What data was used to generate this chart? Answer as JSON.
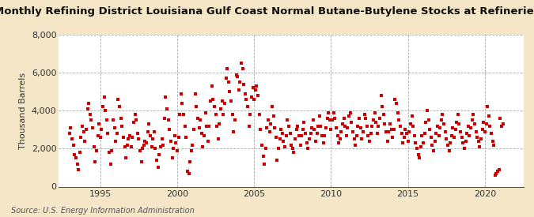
{
  "title": "Monthly Refining District Louisiana Gulf Coast Normal Butane-Butylene Stocks at Refineries",
  "ylabel": "Thousand Barrels",
  "source": "Source: U.S. Energy Information Administration",
  "figure_bg": "#f5e6c8",
  "plot_bg": "#ffffff",
  "dot_color": "#cc0000",
  "ylim": [
    0,
    8000
  ],
  "yticks": [
    0,
    2000,
    4000,
    6000,
    8000
  ],
  "xlim_start": 1992.3,
  "xlim_end": 2022.5,
  "xticks": [
    1995,
    2000,
    2005,
    2010,
    2015,
    2020
  ],
  "grid_color": "#aaaaaa",
  "grid_linestyle": "--",
  "title_fontsize": 9.5,
  "tick_fontsize": 8,
  "ylabel_fontsize": 8,
  "source_fontsize": 7,
  "data": [
    [
      1993.0,
      2800
    ],
    [
      1993.083,
      3100
    ],
    [
      1993.167,
      2500
    ],
    [
      1993.25,
      2200
    ],
    [
      1993.333,
      1700
    ],
    [
      1993.417,
      1500
    ],
    [
      1993.5,
      1200
    ],
    [
      1993.583,
      900
    ],
    [
      1993.667,
      1800
    ],
    [
      1993.75,
      2600
    ],
    [
      1993.833,
      3200
    ],
    [
      1993.917,
      2900
    ],
    [
      1994.0,
      2400
    ],
    [
      1994.083,
      3000
    ],
    [
      1994.167,
      4100
    ],
    [
      1994.25,
      4400
    ],
    [
      1994.333,
      3800
    ],
    [
      1994.417,
      3500
    ],
    [
      1994.5,
      3100
    ],
    [
      1994.583,
      2100
    ],
    [
      1994.667,
      1300
    ],
    [
      1994.75,
      1900
    ],
    [
      1994.833,
      2700
    ],
    [
      1994.917,
      3300
    ],
    [
      1995.0,
      2600
    ],
    [
      1995.083,
      3000
    ],
    [
      1995.167,
      4200
    ],
    [
      1995.25,
      4700
    ],
    [
      1995.333,
      4000
    ],
    [
      1995.417,
      3500
    ],
    [
      1995.5,
      2800
    ],
    [
      1995.583,
      1800
    ],
    [
      1995.667,
      1200
    ],
    [
      1995.75,
      1900
    ],
    [
      1995.833,
      3500
    ],
    [
      1995.917,
      3100
    ],
    [
      1996.0,
      2400
    ],
    [
      1996.083,
      2800
    ],
    [
      1996.167,
      4600
    ],
    [
      1996.25,
      4200
    ],
    [
      1996.333,
      3600
    ],
    [
      1996.417,
      3200
    ],
    [
      1996.5,
      2600
    ],
    [
      1996.583,
      2100
    ],
    [
      1996.667,
      1500
    ],
    [
      1996.75,
      2200
    ],
    [
      1996.833,
      2500
    ],
    [
      1996.917,
      2700
    ],
    [
      1997.0,
      2100
    ],
    [
      1997.083,
      2600
    ],
    [
      1997.167,
      3400
    ],
    [
      1997.25,
      3800
    ],
    [
      1997.333,
      3500
    ],
    [
      1997.417,
      2800
    ],
    [
      1997.5,
      2500
    ],
    [
      1997.583,
      1900
    ],
    [
      1997.667,
      1300
    ],
    [
      1997.75,
      2000
    ],
    [
      1997.833,
      2200
    ],
    [
      1997.917,
      2400
    ],
    [
      1998.0,
      2300
    ],
    [
      1998.083,
      2900
    ],
    [
      1998.167,
      3300
    ],
    [
      1998.25,
      2700
    ],
    [
      1998.333,
      2100
    ],
    [
      1998.417,
      2500
    ],
    [
      1998.5,
      2900
    ],
    [
      1998.583,
      2000
    ],
    [
      1998.667,
      1400
    ],
    [
      1998.75,
      1000
    ],
    [
      1998.833,
      1700
    ],
    [
      1998.917,
      2100
    ],
    [
      1999.0,
      2500
    ],
    [
      1999.083,
      2200
    ],
    [
      1999.167,
      3600
    ],
    [
      1999.25,
      4700
    ],
    [
      1999.333,
      4100
    ],
    [
      1999.417,
      3500
    ],
    [
      1999.5,
      3000
    ],
    [
      1999.583,
      2400
    ],
    [
      1999.667,
      1500
    ],
    [
      1999.75,
      2000
    ],
    [
      1999.833,
      2700
    ],
    [
      1999.917,
      2300
    ],
    [
      2000.0,
      1900
    ],
    [
      2000.083,
      2600
    ],
    [
      2000.167,
      3800
    ],
    [
      2000.25,
      4900
    ],
    [
      2000.333,
      4400
    ],
    [
      2000.417,
      3800
    ],
    [
      2000.5,
      3200
    ],
    [
      2000.583,
      2600
    ],
    [
      2000.667,
      800
    ],
    [
      2000.75,
      700
    ],
    [
      2000.833,
      1300
    ],
    [
      2000.917,
      1900
    ],
    [
      2001.0,
      2200
    ],
    [
      2001.083,
      3000
    ],
    [
      2001.167,
      4900
    ],
    [
      2001.25,
      4200
    ],
    [
      2001.333,
      3600
    ],
    [
      2001.417,
      3100
    ],
    [
      2001.5,
      3500
    ],
    [
      2001.583,
      2800
    ],
    [
      2001.667,
      2100
    ],
    [
      2001.75,
      2700
    ],
    [
      2001.833,
      3900
    ],
    [
      2001.917,
      3200
    ],
    [
      2002.0,
      2400
    ],
    [
      2002.083,
      3200
    ],
    [
      2002.167,
      4500
    ],
    [
      2002.25,
      5300
    ],
    [
      2002.333,
      4600
    ],
    [
      2002.417,
      4200
    ],
    [
      2002.5,
      3800
    ],
    [
      2002.583,
      3200
    ],
    [
      2002.667,
      2500
    ],
    [
      2002.75,
      3300
    ],
    [
      2002.833,
      4100
    ],
    [
      2002.917,
      4500
    ],
    [
      2003.0,
      3800
    ],
    [
      2003.083,
      4400
    ],
    [
      2003.167,
      5700
    ],
    [
      2003.25,
      6200
    ],
    [
      2003.333,
      5500
    ],
    [
      2003.417,
      5000
    ],
    [
      2003.5,
      4500
    ],
    [
      2003.583,
      3800
    ],
    [
      2003.667,
      2900
    ],
    [
      2003.75,
      3500
    ],
    [
      2003.833,
      5900
    ],
    [
      2003.917,
      5800
    ],
    [
      2004.0,
      5100
    ],
    [
      2004.083,
      5500
    ],
    [
      2004.167,
      6500
    ],
    [
      2004.25,
      6200
    ],
    [
      2004.333,
      5400
    ],
    [
      2004.417,
      4900
    ],
    [
      2004.5,
      4600
    ],
    [
      2004.583,
      4200
    ],
    [
      2004.667,
      3200
    ],
    [
      2004.75,
      3800
    ],
    [
      2004.833,
      4700
    ],
    [
      2004.917,
      5200
    ],
    [
      2005.0,
      4600
    ],
    [
      2005.083,
      5100
    ],
    [
      2005.167,
      5300
    ],
    [
      2005.25,
      4800
    ],
    [
      2005.333,
      3800
    ],
    [
      2005.417,
      3000
    ],
    [
      2005.5,
      2200
    ],
    [
      2005.583,
      1600
    ],
    [
      2005.667,
      1200
    ],
    [
      2005.75,
      2000
    ],
    [
      2005.833,
      3100
    ],
    [
      2005.917,
      3500
    ],
    [
      2006.0,
      2900
    ],
    [
      2006.083,
      3300
    ],
    [
      2006.167,
      4200
    ],
    [
      2006.25,
      3700
    ],
    [
      2006.333,
      3100
    ],
    [
      2006.417,
      2600
    ],
    [
      2006.5,
      1400
    ],
    [
      2006.583,
      2000
    ],
    [
      2006.667,
      2500
    ],
    [
      2006.75,
      3000
    ],
    [
      2006.833,
      2800
    ],
    [
      2006.917,
      2400
    ],
    [
      2007.0,
      2100
    ],
    [
      2007.083,
      2700
    ],
    [
      2007.167,
      3500
    ],
    [
      2007.25,
      3200
    ],
    [
      2007.333,
      2800
    ],
    [
      2007.417,
      2200
    ],
    [
      2007.5,
      2000
    ],
    [
      2007.583,
      1800
    ],
    [
      2007.667,
      2500
    ],
    [
      2007.75,
      3000
    ],
    [
      2007.833,
      3200
    ],
    [
      2007.917,
      2700
    ],
    [
      2008.0,
      2200
    ],
    [
      2008.083,
      2700
    ],
    [
      2008.167,
      3000
    ],
    [
      2008.25,
      3400
    ],
    [
      2008.333,
      2800
    ],
    [
      2008.417,
      2300
    ],
    [
      2008.5,
      2000
    ],
    [
      2008.583,
      2500
    ],
    [
      2008.667,
      2800
    ],
    [
      2008.75,
      3100
    ],
    [
      2008.833,
      3500
    ],
    [
      2008.917,
      3000
    ],
    [
      2009.0,
      2400
    ],
    [
      2009.083,
      2800
    ],
    [
      2009.167,
      3200
    ],
    [
      2009.25,
      3700
    ],
    [
      2009.333,
      3200
    ],
    [
      2009.417,
      2700
    ],
    [
      2009.5,
      2300
    ],
    [
      2009.583,
      2700
    ],
    [
      2009.667,
      3100
    ],
    [
      2009.75,
      3600
    ],
    [
      2009.833,
      3900
    ],
    [
      2009.917,
      3500
    ],
    [
      2010.0,
      3000
    ],
    [
      2010.083,
      3500
    ],
    [
      2010.167,
      3900
    ],
    [
      2010.25,
      3600
    ],
    [
      2010.333,
      3100
    ],
    [
      2010.417,
      2700
    ],
    [
      2010.5,
      2300
    ],
    [
      2010.583,
      2500
    ],
    [
      2010.667,
      2900
    ],
    [
      2010.75,
      3300
    ],
    [
      2010.833,
      3600
    ],
    [
      2010.917,
      3200
    ],
    [
      2011.0,
      2700
    ],
    [
      2011.083,
      3100
    ],
    [
      2011.167,
      3700
    ],
    [
      2011.25,
      3900
    ],
    [
      2011.333,
      3400
    ],
    [
      2011.417,
      2900
    ],
    [
      2011.5,
      2500
    ],
    [
      2011.583,
      2200
    ],
    [
      2011.667,
      2700
    ],
    [
      2011.75,
      3200
    ],
    [
      2011.833,
      3600
    ],
    [
      2011.917,
      3100
    ],
    [
      2012.0,
      2500
    ],
    [
      2012.083,
      2900
    ],
    [
      2012.167,
      3800
    ],
    [
      2012.25,
      3600
    ],
    [
      2012.333,
      3200
    ],
    [
      2012.417,
      2700
    ],
    [
      2012.5,
      2400
    ],
    [
      2012.583,
      2800
    ],
    [
      2012.667,
      3200
    ],
    [
      2012.75,
      3500
    ],
    [
      2012.833,
      3900
    ],
    [
      2012.917,
      3400
    ],
    [
      2013.0,
      2800
    ],
    [
      2013.083,
      3200
    ],
    [
      2013.167,
      3600
    ],
    [
      2013.25,
      4800
    ],
    [
      2013.333,
      4200
    ],
    [
      2013.417,
      3800
    ],
    [
      2013.5,
      3300
    ],
    [
      2013.583,
      2900
    ],
    [
      2013.667,
      2400
    ],
    [
      2013.75,
      2900
    ],
    [
      2013.833,
      3300
    ],
    [
      2013.917,
      3000
    ],
    [
      2014.0,
      2600
    ],
    [
      2014.083,
      3000
    ],
    [
      2014.167,
      4600
    ],
    [
      2014.25,
      4400
    ],
    [
      2014.333,
      3900
    ],
    [
      2014.417,
      3500
    ],
    [
      2014.5,
      3200
    ],
    [
      2014.583,
      2800
    ],
    [
      2014.667,
      2300
    ],
    [
      2014.75,
      2600
    ],
    [
      2014.833,
      3000
    ],
    [
      2014.917,
      2800
    ],
    [
      2015.0,
      2400
    ],
    [
      2015.083,
      2900
    ],
    [
      2015.167,
      3300
    ],
    [
      2015.25,
      3700
    ],
    [
      2015.333,
      3200
    ],
    [
      2015.417,
      2700
    ],
    [
      2015.5,
      2300
    ],
    [
      2015.583,
      2000
    ],
    [
      2015.667,
      1700
    ],
    [
      2015.75,
      1500
    ],
    [
      2015.833,
      2100
    ],
    [
      2015.917,
      2700
    ],
    [
      2016.0,
      2300
    ],
    [
      2016.083,
      2800
    ],
    [
      2016.167,
      3400
    ],
    [
      2016.25,
      4000
    ],
    [
      2016.333,
      3500
    ],
    [
      2016.417,
      3000
    ],
    [
      2016.5,
      2600
    ],
    [
      2016.583,
      2200
    ],
    [
      2016.667,
      1900
    ],
    [
      2016.75,
      2400
    ],
    [
      2016.833,
      2800
    ],
    [
      2016.917,
      3200
    ],
    [
      2017.0,
      2700
    ],
    [
      2017.083,
      3100
    ],
    [
      2017.167,
      3500
    ],
    [
      2017.25,
      3800
    ],
    [
      2017.333,
      3300
    ],
    [
      2017.417,
      2900
    ],
    [
      2017.5,
      2500
    ],
    [
      2017.583,
      2200
    ],
    [
      2017.667,
      1900
    ],
    [
      2017.75,
      2300
    ],
    [
      2017.833,
      2700
    ],
    [
      2017.917,
      3100
    ],
    [
      2018.0,
      2600
    ],
    [
      2018.083,
      3000
    ],
    [
      2018.167,
      3400
    ],
    [
      2018.25,
      3800
    ],
    [
      2018.333,
      3300
    ],
    [
      2018.417,
      2900
    ],
    [
      2018.5,
      2600
    ],
    [
      2018.583,
      2300
    ],
    [
      2018.667,
      2000
    ],
    [
      2018.75,
      2400
    ],
    [
      2018.833,
      2800
    ],
    [
      2018.917,
      3200
    ],
    [
      2019.0,
      2700
    ],
    [
      2019.083,
      3100
    ],
    [
      2019.167,
      3500
    ],
    [
      2019.25,
      3800
    ],
    [
      2019.333,
      3300
    ],
    [
      2019.417,
      2900
    ],
    [
      2019.5,
      2600
    ],
    [
      2019.583,
      2400
    ],
    [
      2019.667,
      2100
    ],
    [
      2019.75,
      2500
    ],
    [
      2019.833,
      3000
    ],
    [
      2019.917,
      3400
    ],
    [
      2020.0,
      2900
    ],
    [
      2020.083,
      3300
    ],
    [
      2020.167,
      4200
    ],
    [
      2020.25,
      3700
    ],
    [
      2020.333,
      3200
    ],
    [
      2020.417,
      2800
    ],
    [
      2020.5,
      2400
    ],
    [
      2020.583,
      2200
    ],
    [
      2020.667,
      600
    ],
    [
      2020.75,
      700
    ],
    [
      2020.833,
      800
    ],
    [
      2020.917,
      900
    ],
    [
      2021.0,
      3600
    ],
    [
      2021.083,
      3200
    ],
    [
      2021.167,
      3300
    ]
  ]
}
